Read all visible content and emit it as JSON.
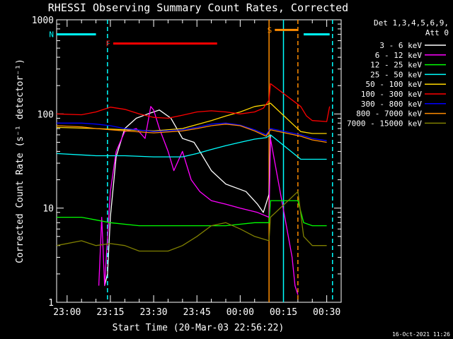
{
  "chart_data": {
    "type": "line",
    "title": "RHESSI Observing Summary Count Rates, Corrected",
    "xlabel": "Start Time (20-Mar-03 22:56:22)",
    "ylabel": "Corrected Count Rate (s⁻¹ detector⁻¹)",
    "y_scale": "log",
    "ylim": [
      1,
      1000
    ],
    "xlim": [
      "22:56:22",
      "00:35:00"
    ],
    "x_ticks": [
      "23:00",
      "23:15",
      "23:30",
      "23:45",
      "00:00",
      "00:15",
      "00:30"
    ],
    "y_ticks": [
      "1",
      "10",
      "100",
      "1000"
    ],
    "legend_header": [
      "Det 1,3,4,5,6,9,",
      "Att 0"
    ],
    "legend_placement": "right",
    "timestamp": "16-Oct-2021 11:26",
    "series": [
      {
        "name": "3 - 6 keV",
        "color": "#ffffff",
        "x": [
          "23:13",
          "23:14",
          "23:15",
          "23:17",
          "23:20",
          "23:24",
          "23:28",
          "23:32",
          "23:36",
          "23:40",
          "23:44",
          "23:46",
          "23:50",
          "23:55",
          "00:02",
          "00:06",
          "00:08",
          "00:10",
          "00:10.5"
        ],
        "y": [
          1.5,
          2,
          8,
          35,
          70,
          90,
          100,
          110,
          90,
          55,
          50,
          40,
          25,
          18,
          15,
          11,
          9,
          14,
          60
        ]
      },
      {
        "name": "6 - 12 keV",
        "color": "#ff00ff",
        "x": [
          "23:11",
          "23:12",
          "23:13",
          "23:15",
          "23:17",
          "23:20",
          "23:24",
          "23:27",
          "23:29",
          "23:30",
          "23:32",
          "23:35",
          "23:37",
          "23:40",
          "23:43",
          "23:46",
          "23:50",
          "23:55",
          "00:00",
          "00:06",
          "00:10",
          "00:10.5",
          "00:18",
          "00:19",
          "00:20"
        ],
        "y": [
          1.5,
          8,
          1.5,
          15,
          40,
          65,
          70,
          55,
          120,
          110,
          70,
          40,
          25,
          40,
          20,
          15,
          12,
          11,
          10,
          9,
          8,
          55,
          3,
          1.5,
          1.2
        ]
      },
      {
        "name": "12 - 25 keV",
        "color": "#00ff00",
        "x": [
          "22:56:22",
          "23:05",
          "23:15",
          "23:25",
          "23:35",
          "23:45",
          "23:55",
          "00:05",
          "00:10",
          "00:10.5",
          "00:20",
          "00:22",
          "00:25",
          "00:30"
        ],
        "y": [
          8,
          8,
          7,
          6.5,
          6.5,
          6.5,
          6.5,
          7,
          7,
          12,
          12,
          7,
          6.5,
          6.5
        ]
      },
      {
        "name": "25 - 50 keV",
        "color": "#00ffff",
        "x": [
          "22:56:22",
          "23:10",
          "23:20",
          "23:30",
          "23:40",
          "23:45",
          "23:50",
          "23:55",
          "00:00",
          "00:05",
          "00:09",
          "00:10.5",
          "00:21",
          "00:25",
          "00:30"
        ],
        "y": [
          38,
          36,
          36,
          35,
          35,
          38,
          42,
          46,
          50,
          54,
          56,
          60,
          33,
          33,
          33
        ]
      },
      {
        "name": "50 - 100 keV",
        "color": "#ffd700",
        "x": [
          "22:56:22",
          "23:10",
          "23:20",
          "23:30",
          "23:40",
          "23:50",
          "23:55",
          "00:00",
          "00:05",
          "00:09",
          "00:10.5",
          "00:21",
          "00:25",
          "00:30"
        ],
        "y": [
          72,
          70,
          68,
          66,
          70,
          85,
          95,
          105,
          120,
          125,
          130,
          65,
          62,
          62
        ]
      },
      {
        "name": "100 - 300 keV",
        "color": "#ff0000",
        "x": [
          "22:56:22",
          "23:05",
          "23:10",
          "23:15",
          "23:20",
          "23:25",
          "23:30",
          "23:35",
          "23:40",
          "23:45",
          "23:50",
          "23:55",
          "00:00",
          "00:05",
          "00:08",
          "00:10",
          "00:10.5",
          "00:21",
          "00:23",
          "00:25",
          "00:30",
          "00:31"
        ],
        "y": [
          100,
          98,
          105,
          118,
          112,
          100,
          92,
          90,
          97,
          105,
          108,
          105,
          100,
          105,
          115,
          140,
          210,
          120,
          95,
          85,
          83,
          120
        ]
      },
      {
        "name": "300 - 800 keV",
        "color": "#0000ff",
        "x": [
          "22:56:22",
          "23:05",
          "23:10",
          "23:15",
          "23:20",
          "23:30",
          "23:40",
          "23:45",
          "23:50",
          "23:55",
          "00:00",
          "00:05",
          "00:09",
          "00:10.5",
          "00:21",
          "00:25",
          "00:30"
        ],
        "y": [
          80,
          80,
          78,
          75,
          70,
          65,
          68,
          72,
          78,
          80,
          76,
          68,
          60,
          70,
          60,
          55,
          52
        ]
      },
      {
        "name": "800 - 7000 keV",
        "color": "#ff8c00",
        "x": [
          "22:56:22",
          "23:05",
          "23:10",
          "23:15",
          "23:20",
          "23:30",
          "23:40",
          "23:45",
          "23:50",
          "23:55",
          "00:00",
          "00:05",
          "00:09",
          "00:10.5",
          "00:21",
          "00:25",
          "00:30"
        ],
        "y": [
          75,
          73,
          70,
          68,
          66,
          63,
          66,
          70,
          75,
          78,
          75,
          66,
          58,
          68,
          58,
          53,
          50
        ]
      },
      {
        "name": "7000 - 15000 keV",
        "color": "#808000",
        "x": [
          "22:56:22",
          "23:05",
          "23:10",
          "23:15",
          "23:20",
          "23:25",
          "23:30",
          "23:35",
          "23:40",
          "23:45",
          "23:50",
          "23:55",
          "00:00",
          "00:05",
          "00:10",
          "00:10.5",
          "00:20",
          "00:22",
          "00:25",
          "00:30"
        ],
        "y": [
          4,
          4.5,
          4,
          4.2,
          4,
          3.5,
          3.5,
          3.5,
          4,
          5,
          6.5,
          7,
          6,
          5,
          4.5,
          8,
          15,
          5,
          4,
          4
        ]
      }
    ],
    "flag_bars": [
      {
        "label": "N",
        "color": "#00ffff",
        "start": "22:56:22",
        "end": "23:10",
        "level": 700
      },
      {
        "label": "F",
        "color": "#ff0000",
        "start": "23:16",
        "end": "23:52",
        "level": 560
      },
      {
        "label": "S",
        "color": "#ff8c00",
        "start": "00:12",
        "end": "00:20",
        "level": 780
      },
      {
        "label": "",
        "color": "#00ffff",
        "start": "00:22",
        "end": "00:31",
        "level": 700
      }
    ],
    "markers": [
      {
        "time": "23:14",
        "color": "#00ffff",
        "style": "dashed"
      },
      {
        "time": "00:10",
        "color": "#ff8c00",
        "style": "solid"
      },
      {
        "time": "00:15",
        "color": "#00ffff",
        "style": "solid"
      },
      {
        "time": "00:20",
        "color": "#ff8c00",
        "style": "dashed"
      },
      {
        "time": "00:32",
        "color": "#00ffff",
        "style": "dashed"
      }
    ]
  }
}
